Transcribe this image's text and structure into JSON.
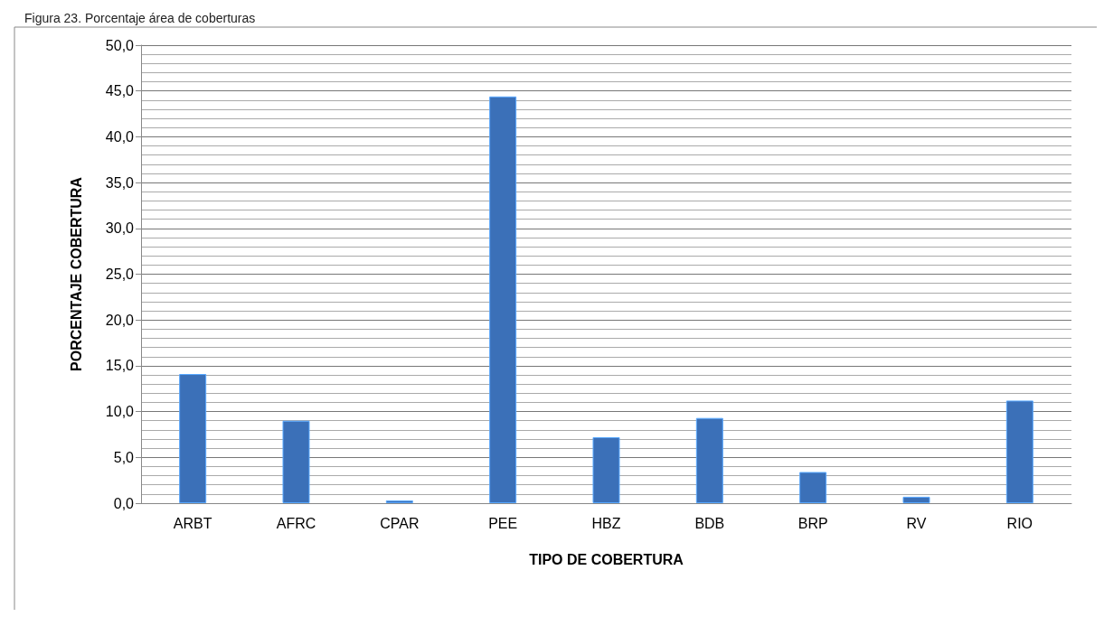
{
  "chart_data": {
    "type": "bar",
    "title": "Figura 23. Porcentaje área de coberturas",
    "xlabel": "TIPO DE COBERTURA",
    "ylabel": "PORCENTAJE COBERTURA",
    "categories": [
      "ARBT",
      "AFRC",
      "CPAR",
      "PEE",
      "HBZ",
      "BDB",
      "BRP",
      "RV",
      "RIO"
    ],
    "values": [
      14.1,
      9.0,
      0.3,
      44.4,
      7.2,
      9.3,
      3.4,
      0.7,
      11.2
    ],
    "color": "#3b70b8",
    "ylim": [
      0,
      50
    ],
    "yticks": [
      {
        "value": 0,
        "label": "0,0"
      },
      {
        "value": 5,
        "label": "5,0"
      },
      {
        "value": 10,
        "label": "10,0"
      },
      {
        "value": 15,
        "label": "15,0"
      },
      {
        "value": 20,
        "label": "20,0"
      },
      {
        "value": 25,
        "label": "25,0"
      },
      {
        "value": 30,
        "label": "30,0"
      },
      {
        "value": 35,
        "label": "35,0"
      },
      {
        "value": 40,
        "label": "40,0"
      },
      {
        "value": 45,
        "label": "45,0"
      },
      {
        "value": 50,
        "label": "50,0"
      }
    ],
    "grid": "y"
  }
}
